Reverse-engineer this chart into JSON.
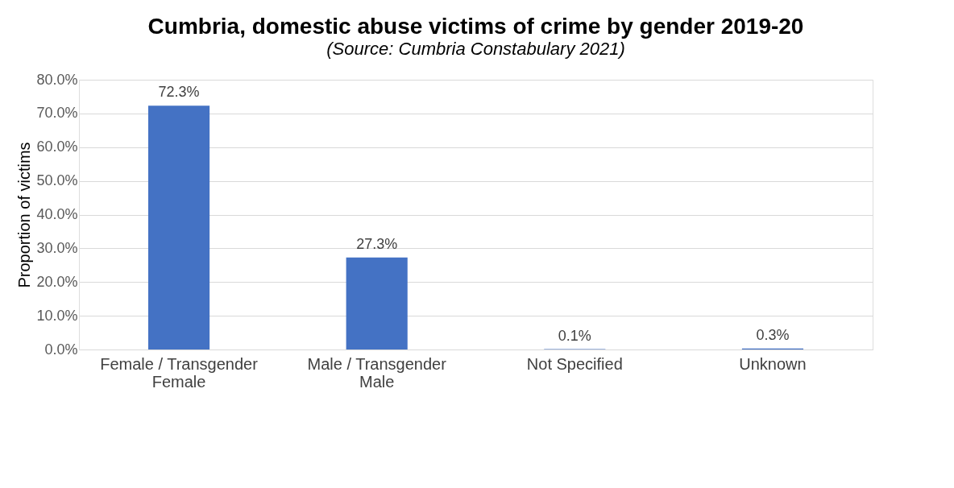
{
  "chart_data": {
    "type": "bar",
    "title": "Cumbria, domestic abuse victims of crime by gender 2019-20",
    "subtitle": "(Source: Cumbria Constabulary 2021)",
    "ylabel": "Proportion of victims",
    "categories": [
      "Female / Transgender Female",
      "Male / Transgender Male",
      "Not Specified",
      "Unknown"
    ],
    "values": [
      72.3,
      27.3,
      0.1,
      0.3
    ],
    "value_labels": [
      "72.3%",
      "27.3%",
      "0.1%",
      "0.3%"
    ],
    "color": "#4472c4",
    "ylim": [
      0,
      80
    ],
    "yticks": [
      {
        "value": 0,
        "label": "0.0%"
      },
      {
        "value": 10,
        "label": "10.0%"
      },
      {
        "value": 20,
        "label": "20.0%"
      },
      {
        "value": 30,
        "label": "30.0%"
      },
      {
        "value": 40,
        "label": "40.0%"
      },
      {
        "value": 50,
        "label": "50.0%"
      },
      {
        "value": 60,
        "label": "60.0%"
      },
      {
        "value": 70,
        "label": "70.0%"
      },
      {
        "value": 80,
        "label": "80.0%"
      }
    ],
    "grid": "y"
  }
}
